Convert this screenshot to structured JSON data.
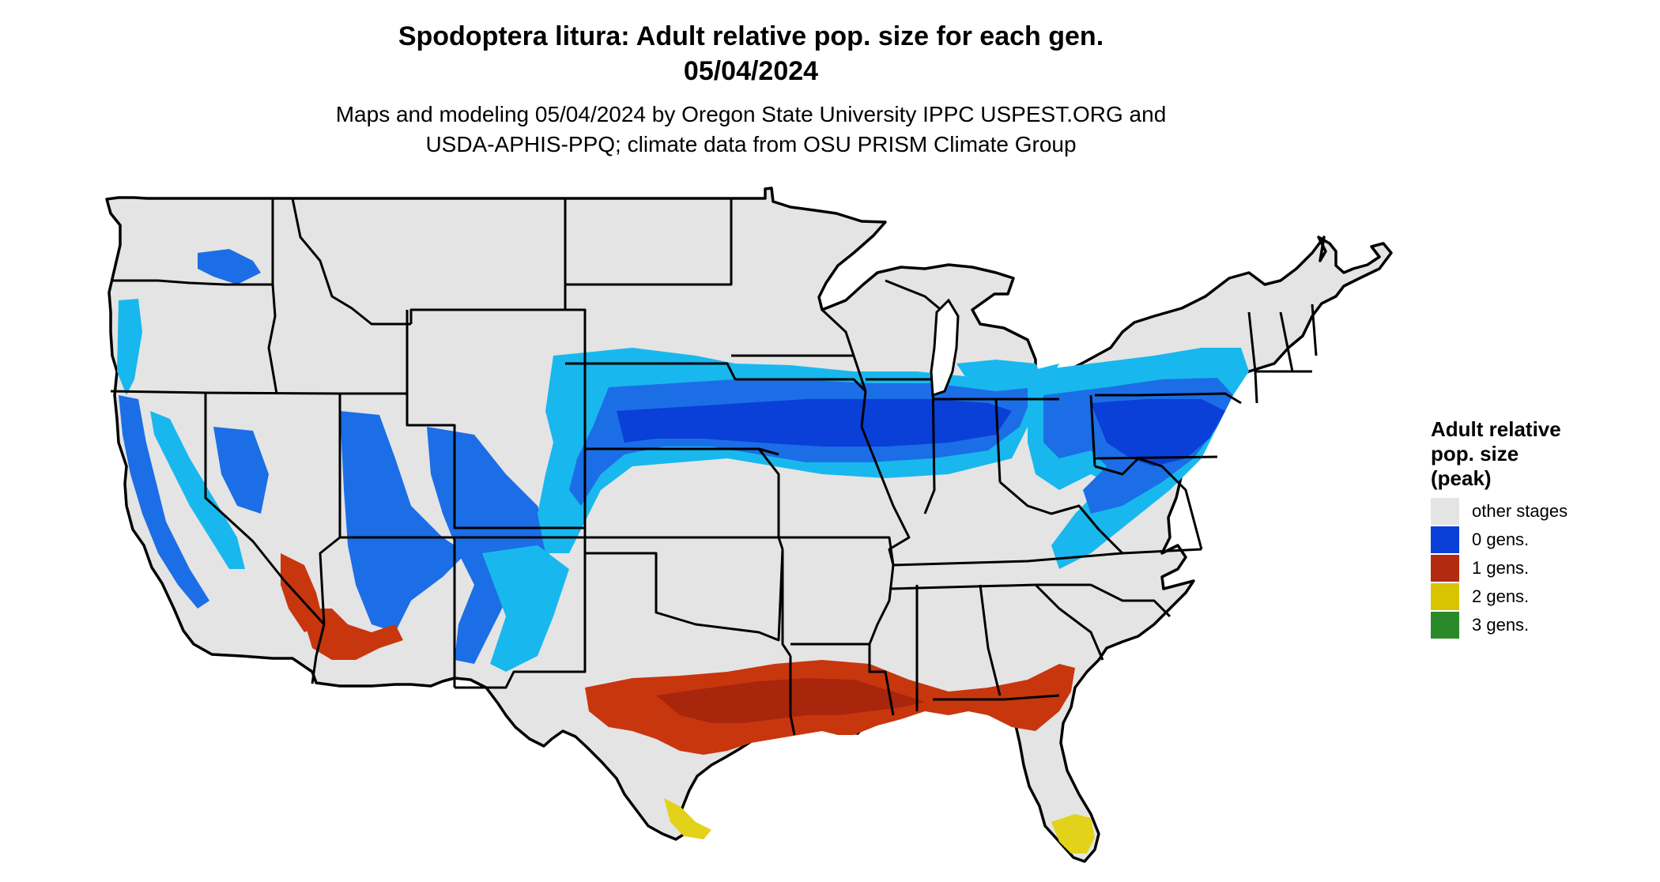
{
  "title": {
    "line1": "Spodoptera litura: Adult relative pop. size for each gen.",
    "line2": "05/04/2024"
  },
  "subtitle": {
    "line1": "Maps and modeling 05/04/2024 by Oregon State University IPPC USPEST.ORG and",
    "line2": "USDA-APHIS-PPQ; climate data from OSU PRISM Climate Group"
  },
  "legend": {
    "title_lines": [
      "Adult relative",
      "pop. size",
      "(peak)"
    ],
    "items": [
      {
        "label": "other stages",
        "color": "#e4e4e4"
      },
      {
        "label": "0 gens.",
        "color": "#0a3fd8"
      },
      {
        "label": "1 gens.",
        "color": "#b22a10"
      },
      {
        "label": "2 gens.",
        "color": "#d8c400"
      },
      {
        "label": "3 gens.",
        "color": "#2a8a2a"
      }
    ]
  },
  "colors": {
    "land": "#e4e4e4",
    "border": "#000000",
    "blue_light": "#18b8ee",
    "blue_mid": "#1c6ee6",
    "blue_dark": "#0a3fd8",
    "red": "#c8360e",
    "red_dark": "#a8260c",
    "yellow": "#e2d21a"
  }
}
